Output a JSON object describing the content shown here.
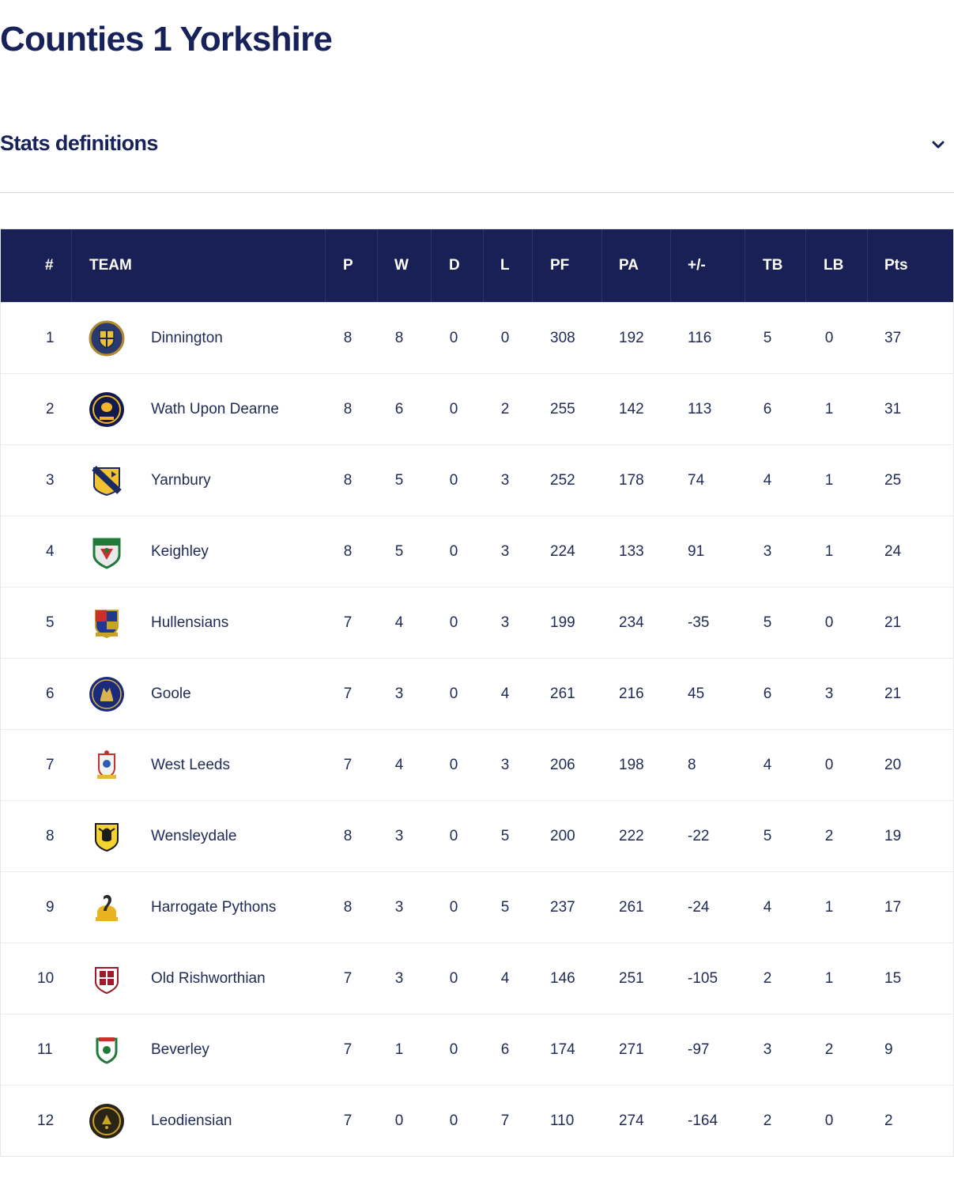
{
  "page": {
    "title": "Counties 1 Yorkshire"
  },
  "stats_definitions": {
    "label": "Stats definitions",
    "icon": "chevron-down-icon"
  },
  "table": {
    "headers": {
      "rank": "#",
      "team": "TEAM",
      "p": "P",
      "w": "W",
      "d": "D",
      "l": "L",
      "pf": "PF",
      "pa": "PA",
      "diff": "+/-",
      "tb": "TB",
      "lb": "LB",
      "pts": "Pts"
    },
    "colors": {
      "header_bg": "#182055",
      "text": "#1f2a55"
    },
    "rows": [
      {
        "rank": "1",
        "team": "Dinnington",
        "crest": "dinnington-crest-icon",
        "p": "8",
        "w": "8",
        "d": "0",
        "l": "0",
        "pf": "308",
        "pa": "192",
        "diff": "116",
        "tb": "5",
        "lb": "0",
        "pts": "37"
      },
      {
        "rank": "2",
        "team": "Wath Upon Dearne",
        "crest": "wath-upon-dearne-crest-icon",
        "p": "8",
        "w": "6",
        "d": "0",
        "l": "2",
        "pf": "255",
        "pa": "142",
        "diff": "113",
        "tb": "6",
        "lb": "1",
        "pts": "31"
      },
      {
        "rank": "3",
        "team": "Yarnbury",
        "crest": "yarnbury-crest-icon",
        "p": "8",
        "w": "5",
        "d": "0",
        "l": "3",
        "pf": "252",
        "pa": "178",
        "diff": "74",
        "tb": "4",
        "lb": "1",
        "pts": "25"
      },
      {
        "rank": "4",
        "team": "Keighley",
        "crest": "keighley-crest-icon",
        "p": "8",
        "w": "5",
        "d": "0",
        "l": "3",
        "pf": "224",
        "pa": "133",
        "diff": "91",
        "tb": "3",
        "lb": "1",
        "pts": "24"
      },
      {
        "rank": "5",
        "team": "Hullensians",
        "crest": "hullensians-crest-icon",
        "p": "7",
        "w": "4",
        "d": "0",
        "l": "3",
        "pf": "199",
        "pa": "234",
        "diff": "-35",
        "tb": "5",
        "lb": "0",
        "pts": "21"
      },
      {
        "rank": "6",
        "team": "Goole",
        "crest": "goole-crest-icon",
        "p": "7",
        "w": "3",
        "d": "0",
        "l": "4",
        "pf": "261",
        "pa": "216",
        "diff": "45",
        "tb": "6",
        "lb": "3",
        "pts": "21"
      },
      {
        "rank": "7",
        "team": "West Leeds",
        "crest": "west-leeds-crest-icon",
        "p": "7",
        "w": "4",
        "d": "0",
        "l": "3",
        "pf": "206",
        "pa": "198",
        "diff": "8",
        "tb": "4",
        "lb": "0",
        "pts": "20"
      },
      {
        "rank": "8",
        "team": "Wensleydale",
        "crest": "wensleydale-crest-icon",
        "p": "8",
        "w": "3",
        "d": "0",
        "l": "5",
        "pf": "200",
        "pa": "222",
        "diff": "-22",
        "tb": "5",
        "lb": "2",
        "pts": "19"
      },
      {
        "rank": "9",
        "team": "Harrogate Pythons",
        "crest": "harrogate-pythons-crest-icon",
        "p": "8",
        "w": "3",
        "d": "0",
        "l": "5",
        "pf": "237",
        "pa": "261",
        "diff": "-24",
        "tb": "4",
        "lb": "1",
        "pts": "17"
      },
      {
        "rank": "10",
        "team": "Old Rishworthian",
        "crest": "old-rishworthian-crest-icon",
        "p": "7",
        "w": "3",
        "d": "0",
        "l": "4",
        "pf": "146",
        "pa": "251",
        "diff": "-105",
        "tb": "2",
        "lb": "1",
        "pts": "15"
      },
      {
        "rank": "11",
        "team": "Beverley",
        "crest": "beverley-crest-icon",
        "p": "7",
        "w": "1",
        "d": "0",
        "l": "6",
        "pf": "174",
        "pa": "271",
        "diff": "-97",
        "tb": "3",
        "lb": "2",
        "pts": "9"
      },
      {
        "rank": "12",
        "team": "Leodiensian",
        "crest": "leodiensian-crest-icon",
        "p": "7",
        "w": "0",
        "d": "0",
        "l": "7",
        "pf": "110",
        "pa": "274",
        "diff": "-164",
        "tb": "2",
        "lb": "0",
        "pts": "2"
      }
    ]
  }
}
